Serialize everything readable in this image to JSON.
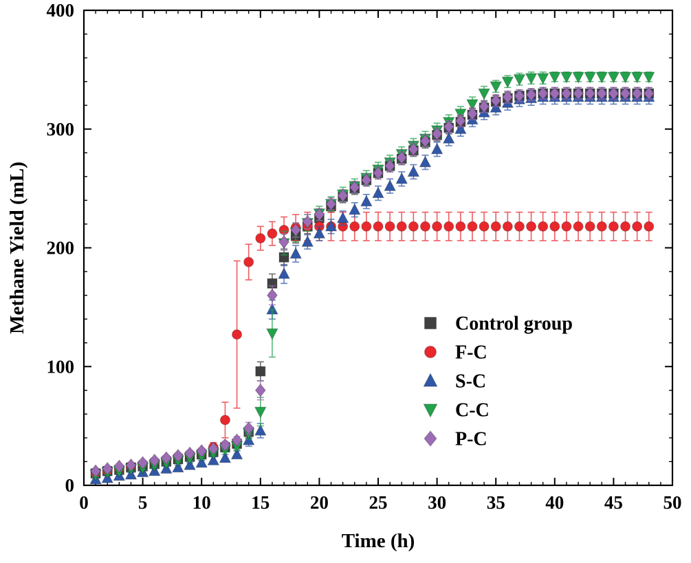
{
  "figure": {
    "xlabel": "Time (h)",
    "ylabel": "Methane Yield (mL)"
  },
  "chart_data": {
    "type": "scatter",
    "title": "",
    "xlabel": "Time (h)",
    "ylabel": "Methane Yield (mL)",
    "xlim": [
      0,
      50
    ],
    "ylim": [
      0,
      400
    ],
    "xticks": [
      0,
      5,
      10,
      15,
      20,
      25,
      30,
      35,
      40,
      45,
      50
    ],
    "yticks": [
      0,
      100,
      200,
      300,
      400
    ],
    "x_minor_step": 1,
    "y_minor_step": 20,
    "grid": false,
    "legend_position": "center-right",
    "frame_color": "#000000",
    "x": [
      1,
      2,
      3,
      4,
      5,
      6,
      7,
      8,
      9,
      10,
      11,
      12,
      13,
      14,
      15,
      16,
      17,
      18,
      19,
      20,
      21,
      22,
      23,
      24,
      25,
      26,
      27,
      28,
      29,
      30,
      31,
      32,
      33,
      34,
      35,
      36,
      37,
      38,
      39,
      40,
      41,
      42,
      43,
      44,
      45,
      46,
      47,
      48
    ],
    "series": [
      {
        "name": "Control group",
        "marker": "square",
        "color": "#404040",
        "values": [
          10,
          12,
          13,
          15,
          16,
          18,
          20,
          22,
          24,
          26,
          28,
          32,
          35,
          45,
          96,
          170,
          192,
          210,
          218,
          225,
          235,
          243,
          250,
          257,
          263,
          269,
          275,
          282,
          289,
          295,
          301,
          306,
          312,
          318,
          323,
          326,
          328,
          329,
          330,
          330,
          330,
          330,
          330,
          330,
          330,
          330,
          330,
          330
        ],
        "errors": [
          2,
          2,
          2,
          2,
          2,
          2,
          2,
          3,
          3,
          3,
          3,
          3,
          3,
          5,
          8,
          8,
          7,
          6,
          6,
          5,
          5,
          5,
          5,
          5,
          5,
          5,
          5,
          5,
          5,
          5,
          5,
          5,
          5,
          5,
          5,
          5,
          5,
          5,
          5,
          5,
          5,
          5,
          5,
          5,
          5,
          5,
          5,
          5
        ]
      },
      {
        "name": "F-C",
        "marker": "circle",
        "color": "#e8282d",
        "values": [
          10,
          12,
          14,
          16,
          18,
          20,
          22,
          24,
          26,
          28,
          32,
          55,
          127,
          188,
          208,
          212,
          215,
          217,
          218,
          218,
          218,
          218,
          218,
          218,
          218,
          218,
          218,
          218,
          218,
          218,
          218,
          218,
          218,
          218,
          218,
          218,
          218,
          218,
          218,
          218,
          218,
          218,
          218,
          218,
          218,
          218,
          218,
          218
        ],
        "errors": [
          2,
          2,
          2,
          2,
          2,
          2,
          2,
          3,
          3,
          3,
          4,
          15,
          62,
          15,
          10,
          10,
          11,
          11,
          12,
          12,
          12,
          12,
          12,
          12,
          12,
          12,
          12,
          12,
          12,
          12,
          12,
          12,
          12,
          12,
          12,
          12,
          12,
          12,
          12,
          12,
          12,
          12,
          12,
          12,
          12,
          12,
          12,
          12
        ]
      },
      {
        "name": "S-C",
        "marker": "triangle-up",
        "color": "#3158a7",
        "values": [
          5,
          6,
          8,
          9,
          11,
          12,
          14,
          15,
          17,
          19,
          21,
          23,
          26,
          38,
          46,
          148,
          178,
          195,
          205,
          212,
          218,
          225,
          232,
          239,
          246,
          252,
          258,
          264,
          272,
          283,
          292,
          300,
          308,
          314,
          318,
          322,
          325,
          326,
          327,
          327,
          327,
          327,
          327,
          327,
          327,
          327,
          327,
          327
        ],
        "errors": [
          2,
          2,
          2,
          2,
          2,
          2,
          2,
          2,
          2,
          2,
          3,
          3,
          3,
          5,
          6,
          8,
          8,
          7,
          6,
          6,
          6,
          6,
          6,
          6,
          6,
          6,
          6,
          6,
          6,
          6,
          6,
          6,
          6,
          6,
          6,
          6,
          6,
          6,
          6,
          6,
          6,
          6,
          6,
          6,
          6,
          6,
          6,
          6
        ]
      },
      {
        "name": "C-C",
        "marker": "triangle-down",
        "color": "#22a24b",
        "values": [
          9,
          11,
          12,
          14,
          15,
          17,
          19,
          21,
          23,
          25,
          27,
          30,
          33,
          44,
          62,
          128,
          204,
          213,
          221,
          229,
          237,
          245,
          252,
          259,
          266,
          272,
          279,
          286,
          292,
          299,
          306,
          313,
          321,
          330,
          336,
          340,
          342,
          343,
          343,
          344,
          344,
          344,
          344,
          344,
          344,
          344,
          344,
          344
        ],
        "errors": [
          2,
          2,
          2,
          2,
          2,
          2,
          2,
          2,
          2,
          2,
          2,
          2,
          3,
          5,
          12,
          20,
          10,
          8,
          7,
          6,
          6,
          6,
          6,
          6,
          6,
          6,
          6,
          6,
          6,
          6,
          6,
          6,
          6,
          6,
          5,
          5,
          5,
          5,
          5,
          4,
          4,
          4,
          4,
          4,
          4,
          4,
          4,
          4
        ]
      },
      {
        "name": "P-C",
        "marker": "diamond",
        "color": "#9c6cb4",
        "values": [
          12,
          14,
          16,
          17,
          19,
          21,
          23,
          25,
          27,
          29,
          31,
          34,
          38,
          48,
          80,
          160,
          205,
          215,
          222,
          228,
          237,
          244,
          251,
          257,
          263,
          269,
          276,
          283,
          290,
          296,
          302,
          307,
          313,
          319,
          324,
          327,
          328,
          329,
          330,
          330,
          330,
          330,
          330,
          330,
          330,
          330,
          330,
          330
        ],
        "errors": [
          2,
          2,
          2,
          2,
          2,
          2,
          2,
          2,
          2,
          2,
          2,
          3,
          3,
          5,
          8,
          8,
          7,
          6,
          6,
          5,
          5,
          5,
          5,
          5,
          5,
          5,
          5,
          5,
          5,
          5,
          5,
          5,
          5,
          5,
          5,
          5,
          5,
          5,
          5,
          5,
          5,
          5,
          5,
          5,
          5,
          5,
          5,
          5
        ]
      }
    ]
  }
}
